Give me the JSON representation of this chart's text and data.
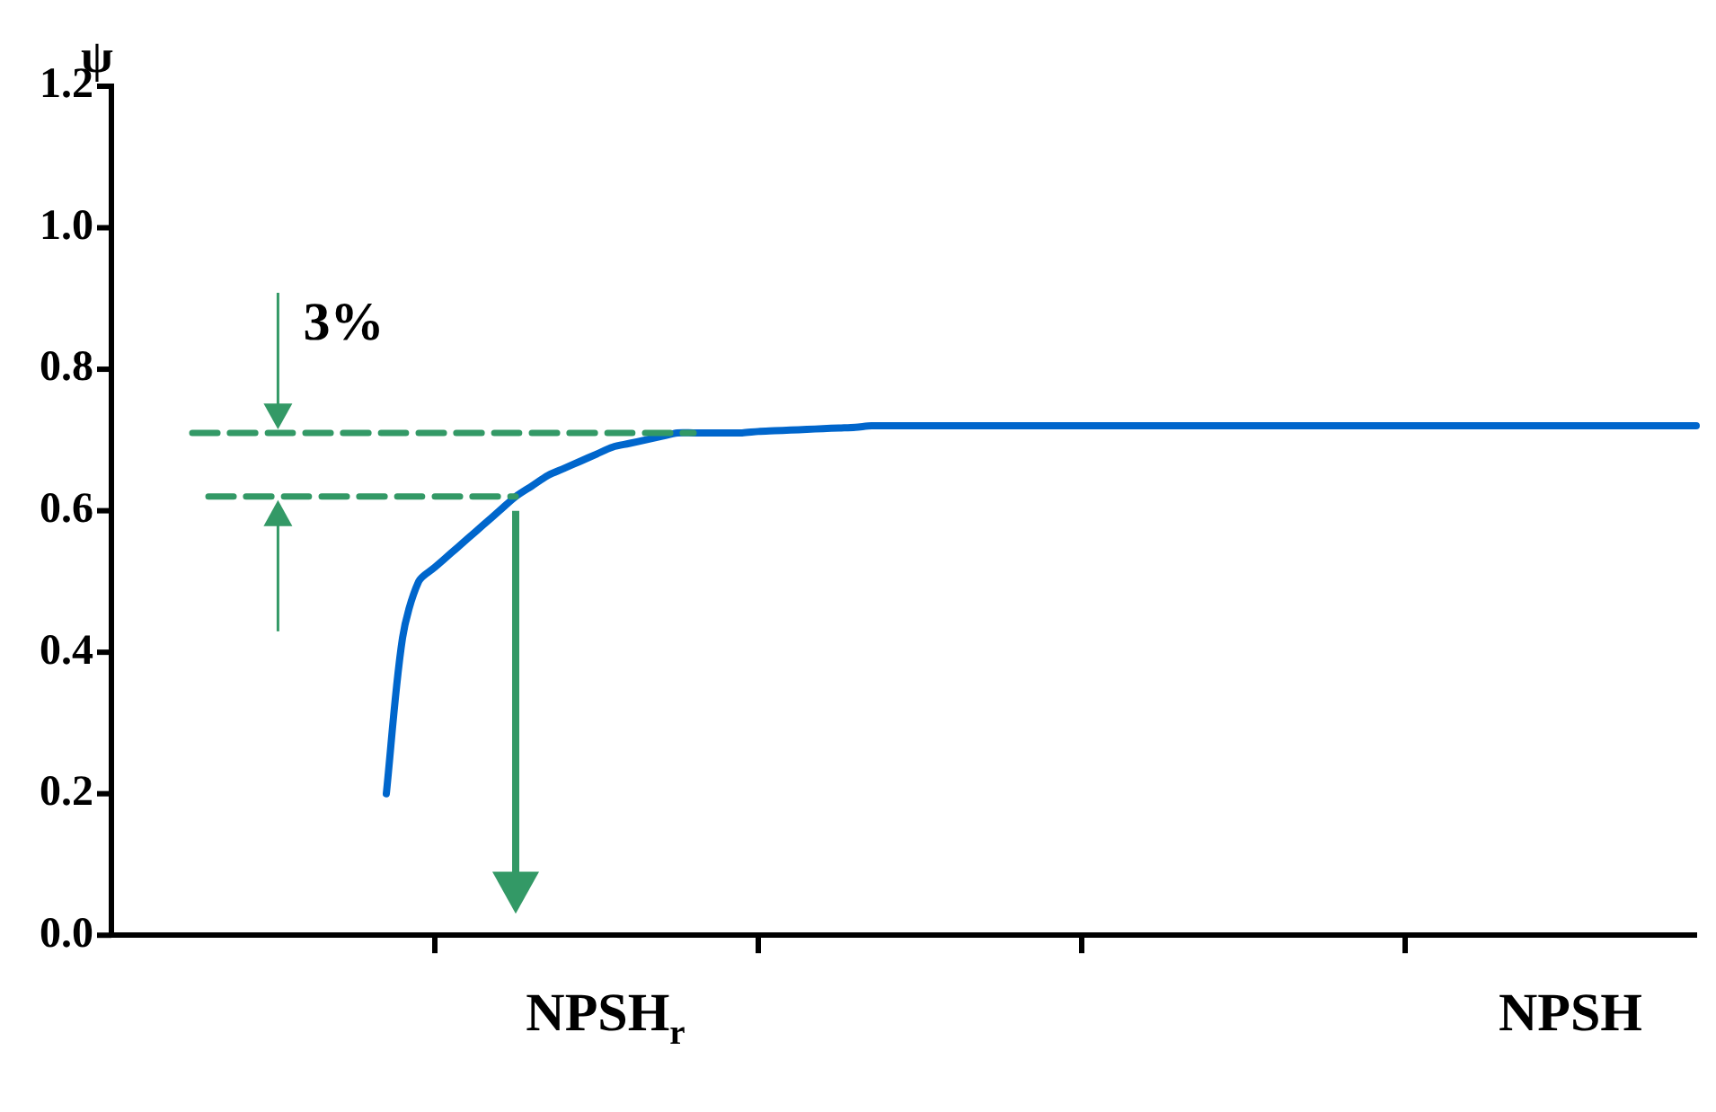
{
  "chart_data": {
    "type": "line",
    "ylabel": "ψ",
    "categories": [
      null,
      null,
      null,
      null,
      null,
      null,
      null,
      null,
      null,
      null,
      null,
      null,
      null,
      null,
      null,
      null,
      null,
      null,
      null,
      null,
      null,
      null,
      null,
      null,
      null,
      null,
      null,
      null,
      null,
      null,
      null,
      null,
      null,
      null,
      null,
      null,
      null,
      null,
      null,
      null,
      null,
      null,
      null,
      null,
      null,
      null,
      null,
      null,
      null,
      null,
      null,
      null,
      null,
      null,
      null,
      null,
      null,
      null,
      null,
      null,
      null,
      null,
      null,
      null,
      null,
      null,
      null,
      null,
      null,
      null,
      null,
      null,
      null,
      null,
      null,
      null,
      null,
      null,
      null,
      null,
      null,
      null,
      null,
      null,
      null,
      null,
      null,
      null,
      null,
      null,
      null,
      null,
      null,
      null,
      null,
      null,
      null,
      null,
      null
    ],
    "series": [
      {
        "color": "#0066cc",
        "values": [
          null,
          null,
          null,
          null,
          null,
          null,
          null,
          null,
          null,
          null,
          null,
          null,
          null,
          null,
          null,
          null,
          null,
          0.2,
          0.42,
          0.5,
          0.52,
          0.54,
          0.56,
          0.58,
          0.6,
          0.62,
          0.635,
          0.65,
          0.66,
          0.67,
          0.68,
          0.69,
          0.695,
          0.7,
          0.705,
          0.71,
          0.71,
          0.71,
          0.71,
          0.71,
          0.712,
          0.713,
          0.714,
          0.715,
          0.716,
          0.717,
          0.718,
          0.72,
          0.72,
          0.72,
          0.72,
          0.72,
          0.72,
          0.72,
          0.72,
          0.72,
          0.72,
          0.72,
          0.72,
          0.72,
          0.72,
          0.72,
          0.72,
          0.72,
          0.72,
          0.72,
          0.72,
          0.72,
          0.72,
          0.72,
          0.72,
          0.72,
          0.72,
          0.72,
          0.72,
          0.72,
          0.72,
          0.72,
          0.72,
          0.72,
          0.72,
          0.72,
          0.72,
          0.72,
          0.72,
          0.72,
          0.72,
          0.72,
          0.72,
          0.72,
          0.72,
          0.72,
          0.72,
          0.72,
          0.72,
          0.72,
          0.72,
          0.72,
          0.72
        ]
      },
      {
        "color": "#339966",
        "line_style": "dashed",
        "values": [
          null,
          null,
          null,
          null,
          null,
          0.71,
          0.71,
          0.71,
          0.71,
          0.71,
          0.71,
          0.71,
          0.71,
          0.71,
          0.71,
          0.71,
          0.71,
          0.71,
          0.71,
          0.71,
          0.71,
          0.71,
          0.71,
          0.71,
          0.71,
          0.71,
          0.71,
          0.71,
          0.71,
          0.71,
          0.71,
          0.71,
          0.71,
          0.71,
          0.71,
          0.71,
          0.71,
          null,
          null,
          null,
          null,
          null,
          null,
          null,
          null,
          null,
          null,
          null,
          null,
          null,
          null,
          null,
          null,
          null,
          null,
          null,
          null,
          null,
          null,
          null,
          null,
          null,
          null,
          null,
          null,
          null,
          null,
          null,
          null,
          null,
          null,
          null,
          null,
          null,
          null,
          null,
          null,
          null,
          null,
          null,
          null,
          null,
          null,
          null,
          null,
          null,
          null,
          null,
          null,
          null,
          null,
          null,
          null,
          null,
          null,
          null,
          null,
          null,
          null
        ]
      },
      {
        "color": "#339966",
        "line_style": "dashed",
        "values": [
          null,
          null,
          null,
          null,
          null,
          null,
          0.62,
          0.62,
          0.62,
          0.62,
          0.62,
          0.62,
          0.62,
          0.62,
          0.62,
          0.62,
          0.62,
          0.62,
          0.62,
          0.62,
          0.62,
          0.62,
          0.62,
          0.62,
          0.62,
          0.62,
          null,
          null,
          null,
          null,
          null,
          null,
          null,
          null,
          null,
          null,
          null,
          null,
          null,
          null,
          null,
          null,
          null,
          null,
          null,
          null,
          null,
          null,
          null,
          null,
          null,
          null,
          null,
          null,
          null,
          null,
          null,
          null,
          null,
          null,
          null,
          null,
          null,
          null,
          null,
          null,
          null,
          null,
          null,
          null,
          null,
          null,
          null,
          null,
          null,
          null,
          null,
          null,
          null,
          null,
          null,
          null,
          null,
          null,
          null,
          null,
          null,
          null,
          null,
          null,
          null,
          null,
          null,
          null,
          null,
          null,
          null,
          null,
          null
        ]
      }
    ],
    "ylim": [
      0,
      1.2
    ],
    "yticks": [
      {
        "value": 0,
        "label": "0.0"
      },
      {
        "value": 0.2,
        "label": "0.2"
      },
      {
        "value": 0.4,
        "label": "0.4"
      },
      {
        "value": 0.6,
        "label": "0.6"
      },
      {
        "value": 0.8,
        "label": "0.8"
      },
      {
        "value": 1,
        "label": "1.0"
      },
      {
        "value": 1.2,
        "label": "1.2"
      }
    ],
    "annotations": [
      "3%",
      "NPSH$_{r}$",
      "NPSH"
    ],
    "legend": false,
    "grid": false,
    "marker": "none"
  }
}
